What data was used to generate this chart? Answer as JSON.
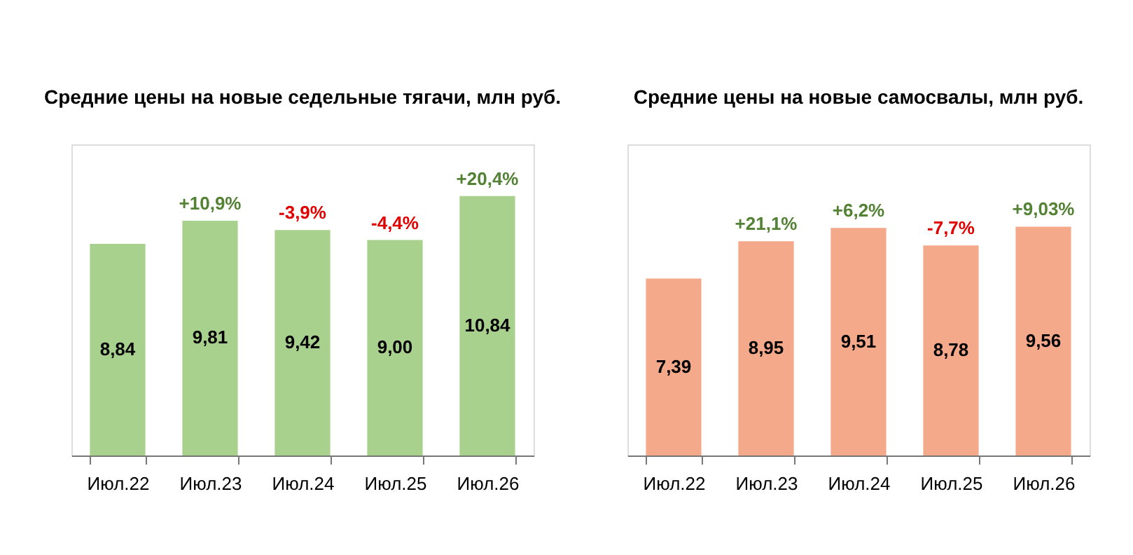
{
  "chart_data": [
    {
      "type": "bar",
      "title": "Средние цены на новые седельные тягачи, млн руб.",
      "categories": [
        "Июл.22",
        "Июл.23",
        "Июл.24",
        "Июл.25",
        "Июл.26"
      ],
      "values": [
        8.84,
        9.81,
        9.42,
        9.0,
        10.84
      ],
      "value_labels": [
        "8,84",
        "9,81",
        "9,42",
        "9,00",
        "10,84"
      ],
      "color": "#a9d18e",
      "ylim": [
        0,
        13
      ],
      "tick_labels": "x",
      "grid": false,
      "annotations": [
        {
          "text": "+10,9%",
          "x": "Июл.23",
          "y": 9.81
        },
        {
          "text": "-3,9%",
          "x": "Июл.24",
          "y": 9.42
        },
        {
          "text": "-4,4%",
          "x": "Июл.25",
          "y": 9.0
        },
        {
          "text": "+20,4%",
          "x": "Июл.26",
          "y": 10.84
        }
      ]
    },
    {
      "type": "bar",
      "title": "Средние цены на новые самосвалы, млн руб.",
      "categories": [
        "Июл.22",
        "Июл.23",
        "Июл.24",
        "Июл.25",
        "Июл.26"
      ],
      "values": [
        7.39,
        8.95,
        9.51,
        8.78,
        9.56
      ],
      "value_labels": [
        "7,39",
        "8,95",
        "9,51",
        "8,78",
        "9,56"
      ],
      "color": "#f4a98a",
      "ylim": [
        0,
        13
      ],
      "tick_labels": "x",
      "grid": false,
      "annotations": [
        {
          "text": "+21,1%",
          "x": "Июл.23",
          "y": 8.95
        },
        {
          "text": "+6,2%",
          "x": "Июл.24",
          "y": 9.51
        },
        {
          "text": "-7,7%",
          "x": "Июл.25",
          "y": 8.78
        },
        {
          "text": "+9,03%",
          "x": "Июл.26",
          "y": 9.56
        }
      ]
    }
  ]
}
